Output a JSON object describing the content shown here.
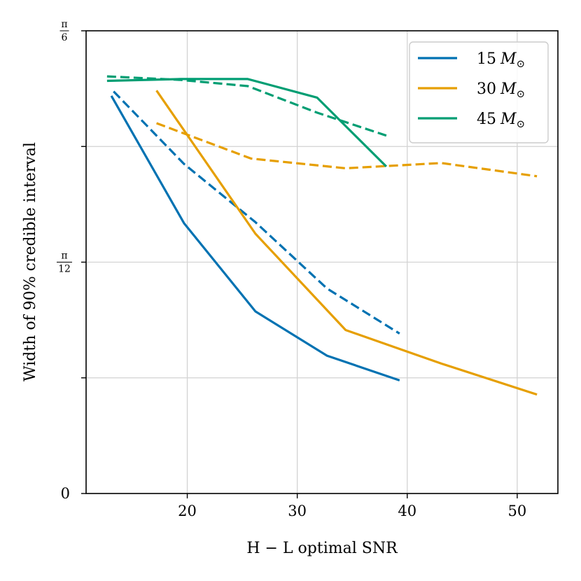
{
  "chart_data": {
    "type": "line",
    "title": "",
    "xlabel": "H − L optimal SNR",
    "ylabel": "Width of 90% credible interval",
    "xlim": [
      10.8,
      53.7
    ],
    "ylim": [
      0,
      0.5236
    ],
    "x_ticks": [
      {
        "value": 20,
        "label": "20"
      },
      {
        "value": 30,
        "label": "30"
      },
      {
        "value": 40,
        "label": "40"
      },
      {
        "value": 50,
        "label": "50"
      }
    ],
    "y_ticks": [
      {
        "value": 0,
        "label": "0"
      },
      {
        "value": 0.1309,
        "label": ""
      },
      {
        "value": 0.2618,
        "label": "π/12",
        "num": "π",
        "den": "12"
      },
      {
        "value": 0.3927,
        "label": ""
      },
      {
        "value": 0.5236,
        "label": "π/6",
        "num": "π",
        "den": "6"
      }
    ],
    "grid": true,
    "legend_position": "top-right",
    "series": [
      {
        "name": "15 M⊙",
        "label_main": "15",
        "label_sym": "M",
        "label_sub": "⊙",
        "color": "#0072b2",
        "dash": "solid",
        "x": [
          13.1,
          19.7,
          26.2,
          32.7,
          39.3
        ],
        "y": [
          0.45,
          0.306,
          0.206,
          0.156,
          0.128
        ]
      },
      {
        "name": "15 M⊙",
        "color": "#0072b2",
        "dash": "dashed",
        "x": [
          13.3,
          19.7,
          26.2,
          32.7,
          39.3
        ],
        "y": [
          0.455,
          0.373,
          0.307,
          0.232,
          0.181
        ]
      },
      {
        "name": "30 M⊙",
        "label_main": "30",
        "label_sym": "M",
        "label_sub": "⊙",
        "color": "#e69f00",
        "dash": "solid",
        "x": [
          17.2,
          26.2,
          34.4,
          43.1,
          51.8
        ],
        "y": [
          0.456,
          0.294,
          0.185,
          0.147,
          0.112
        ]
      },
      {
        "name": "30 M⊙",
        "color": "#e69f00",
        "dash": "dashed",
        "x": [
          17.2,
          25.8,
          34.4,
          43.1,
          51.8
        ],
        "y": [
          0.419,
          0.379,
          0.368,
          0.374,
          0.359
        ]
      },
      {
        "name": "45 M⊙",
        "label_main": "45",
        "label_sym": "M",
        "label_sub": "⊙",
        "color": "#009e73",
        "dash": "solid",
        "x": [
          12.7,
          19.4,
          25.5,
          31.8,
          38.1
        ],
        "y": [
          0.467,
          0.469,
          0.469,
          0.448,
          0.37
        ]
      },
      {
        "name": "45 M⊙",
        "color": "#009e73",
        "dash": "dashed",
        "x": [
          12.7,
          19.4,
          25.5,
          31.8,
          38.1
        ],
        "y": [
          0.472,
          0.468,
          0.461,
          0.431,
          0.405
        ]
      }
    ]
  }
}
